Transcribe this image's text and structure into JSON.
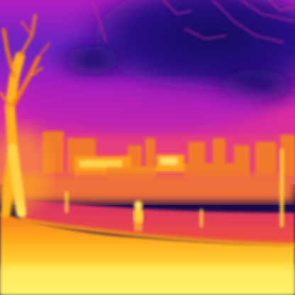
{
  "image": {
    "kind": "thermal-camera-frame",
    "palette": "ironbow",
    "subjects": [
      "bare-tree",
      "buildings",
      "pedestrian",
      "road",
      "grass-field",
      "night-sky"
    ],
    "colors": {
      "cold": "#1c0f6e",
      "cool": "#5a22b8",
      "mid": "#b21fc2",
      "warm": "#e0307a",
      "hot": "#f5791e",
      "hotter": "#ffb21a",
      "hottest": "#fff26a"
    }
  }
}
